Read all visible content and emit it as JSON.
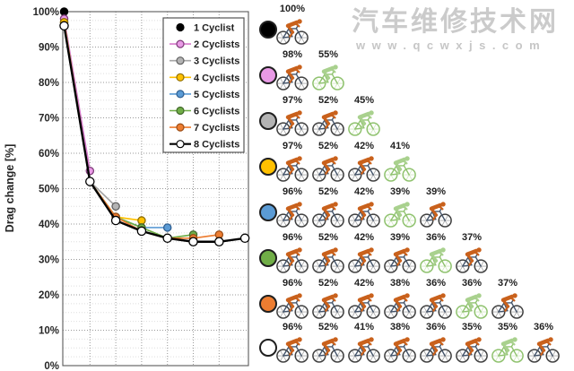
{
  "watermark": {
    "line1": "汽车维修技术网",
    "line2": "www.qcwxjs.com"
  },
  "chart_data": {
    "type": "line",
    "title": "",
    "xlabel": "",
    "ylabel": "Drag change [%]",
    "x": [
      1,
      2,
      3,
      4,
      5,
      6,
      7,
      8
    ],
    "ylim": [
      0,
      100
    ],
    "grid": true,
    "legend_position": "top-right",
    "y_ticks": [
      "100%",
      "90%",
      "80%",
      "70%",
      "60%",
      "50%",
      "40%",
      "30%",
      "20%",
      "10%",
      "0%"
    ],
    "series": [
      {
        "name": "1 Cyclist",
        "values": [
          100
        ]
      },
      {
        "name": "2 Cyclists",
        "values": [
          98,
          55
        ]
      },
      {
        "name": "3 Cyclists",
        "values": [
          97,
          52,
          45
        ]
      },
      {
        "name": "4 Cyclists",
        "values": [
          97,
          52,
          42,
          41
        ]
      },
      {
        "name": "5 Cyclists",
        "values": [
          96,
          52,
          42,
          39,
          39
        ]
      },
      {
        "name": "6 Cyclists",
        "values": [
          96,
          52,
          42,
          39,
          36,
          37
        ]
      },
      {
        "name": "7 Cyclists",
        "values": [
          96,
          52,
          42,
          38,
          36,
          36,
          37
        ]
      },
      {
        "name": "8 Cyclists",
        "values": [
          96,
          52,
          41,
          38,
          36,
          35,
          35,
          36
        ]
      }
    ]
  },
  "series_styles": [
    {
      "line": "#000000",
      "fill": "#000000",
      "edge": "#000000"
    },
    {
      "line": "#d678cc",
      "fill": "#e99ae6",
      "edge": "#7d3b78"
    },
    {
      "line": "#a6a6a6",
      "fill": "#b3b3b3",
      "edge": "#5f5f5f"
    },
    {
      "line": "#ffc000",
      "fill": "#ffc000",
      "edge": "#8f6e00"
    },
    {
      "line": "#5b9bd5",
      "fill": "#5b9bd5",
      "edge": "#2f5f91"
    },
    {
      "line": "#70ad47",
      "fill": "#70ad47",
      "edge": "#41682a"
    },
    {
      "line": "#ed7d31",
      "fill": "#ed7d31",
      "edge": "#9c4d15"
    },
    {
      "line": "#000000",
      "fill": "#ffffff",
      "edge": "#000000"
    }
  ],
  "cyclist_colors": {
    "orange": {
      "rider": "#c9611c",
      "frame": "#44546a",
      "wheel": "#3f3f3f",
      "spoke": "#a0a0a0"
    },
    "green": {
      "rider": "#a9d18e",
      "frame": "#8fc26e",
      "wheel": "#8fc26e",
      "spoke": "#cde6bb"
    }
  },
  "formation_rows": [
    {
      "dot": "#000000",
      "labels": [
        "100%"
      ],
      "green_index": -1
    },
    {
      "dot": "#e99ae6",
      "labels": [
        "98%",
        "55%"
      ],
      "green_index": 1
    },
    {
      "dot": "#b3b3b3",
      "labels": [
        "97%",
        "52%",
        "45%"
      ],
      "green_index": 2
    },
    {
      "dot": "#ffc000",
      "labels": [
        "97%",
        "52%",
        "42%",
        "41%"
      ],
      "green_index": 3
    },
    {
      "dot": "#5b9bd5",
      "labels": [
        "96%",
        "52%",
        "42%",
        "39%",
        "39%"
      ],
      "green_index": 3
    },
    {
      "dot": "#70ad47",
      "labels": [
        "96%",
        "52%",
        "42%",
        "39%",
        "36%",
        "37%"
      ],
      "green_index": 4
    },
    {
      "dot": "#ed7d31",
      "labels": [
        "96%",
        "52%",
        "42%",
        "38%",
        "36%",
        "36%",
        "37%"
      ],
      "green_index": 5
    },
    {
      "dot": "#ffffff",
      "labels": [
        "96%",
        "52%",
        "41%",
        "38%",
        "36%",
        "35%",
        "35%",
        "36%"
      ],
      "green_index": 6
    }
  ]
}
